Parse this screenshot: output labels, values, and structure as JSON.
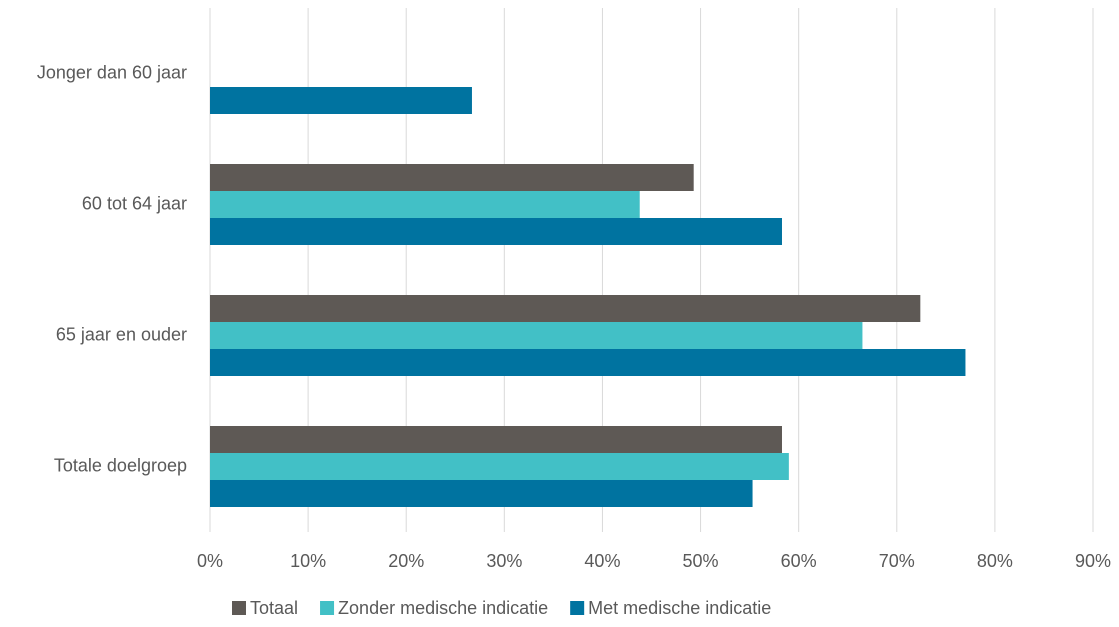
{
  "chart_data": {
    "type": "bar",
    "orientation": "horizontal",
    "categories": [
      "Jonger dan 60 jaar",
      "60 tot 64 jaar",
      "65 jaar en ouder",
      "Totale doelgroep"
    ],
    "series": [
      {
        "name": "Totaal",
        "color": "#5e5955",
        "values": [
          null,
          49.3,
          72.4,
          58.3
        ]
      },
      {
        "name": "Zonder medische indicatie",
        "color": "#42c0c6",
        "values": [
          null,
          43.8,
          66.5,
          59.0
        ]
      },
      {
        "name": "Met medische indicatie",
        "color": "#0073a0",
        "values": [
          26.7,
          58.3,
          77.0,
          55.3
        ]
      }
    ],
    "xlim": [
      0,
      90
    ],
    "xticks": [
      {
        "value": 0,
        "label": "0%"
      },
      {
        "value": 10,
        "label": "10%"
      },
      {
        "value": 20,
        "label": "20%"
      },
      {
        "value": 30,
        "label": "30%"
      },
      {
        "value": 40,
        "label": "40%"
      },
      {
        "value": 50,
        "label": "50%"
      },
      {
        "value": 60,
        "label": "60%"
      },
      {
        "value": 70,
        "label": "70%"
      },
      {
        "value": 80,
        "label": "80%"
      },
      {
        "value": 90,
        "label": "90%"
      }
    ],
    "grid": true,
    "legend": "bottom"
  }
}
